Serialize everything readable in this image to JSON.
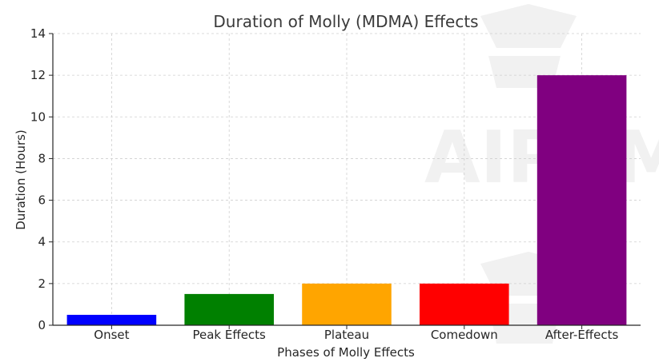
{
  "chart_data": {
    "type": "bar",
    "title": "Duration of Molly (MDMA) Effects",
    "xlabel": "Phases of Molly Effects",
    "ylabel": "Duration (Hours)",
    "categories": [
      "Onset",
      "Peak Effects",
      "Plateau",
      "Comedown",
      "After-Effects"
    ],
    "values": [
      0.5,
      1.5,
      2,
      2,
      12
    ],
    "colors": [
      "#0000ff",
      "#008000",
      "#ffa500",
      "#ff0000",
      "#800080"
    ],
    "ylim": [
      0,
      14
    ],
    "yticks": [
      0,
      2,
      4,
      6,
      8,
      10,
      12,
      14
    ],
    "grid": true,
    "legend": "none"
  },
  "watermark": "AIPRM"
}
